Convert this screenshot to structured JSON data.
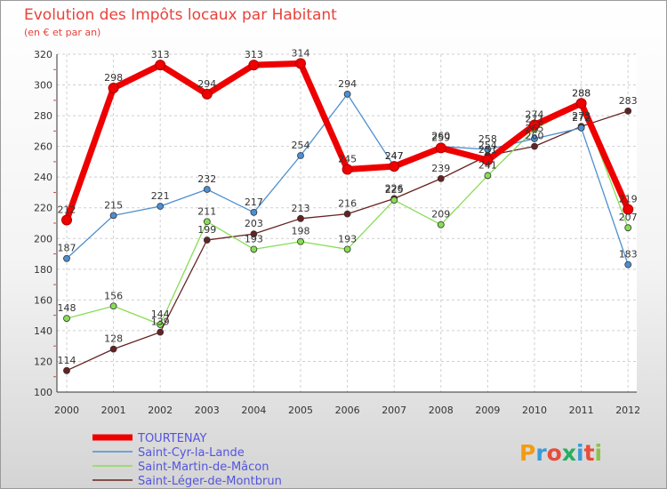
{
  "chart_data": {
    "type": "line",
    "title": "Evolution des Impôts locaux par Habitant",
    "subtitle": "(en € et par an)",
    "xlabel": "",
    "ylabel": "",
    "categories": [
      "2000",
      "2001",
      "2002",
      "2003",
      "2004",
      "2005",
      "2006",
      "2007",
      "2008",
      "2009",
      "2010",
      "2011",
      "2012"
    ],
    "ylim": [
      100,
      320
    ],
    "yticks": [
      100,
      120,
      140,
      160,
      180,
      200,
      220,
      240,
      260,
      280,
      300,
      320
    ],
    "grid": true,
    "series": [
      {
        "name": "TOURTENAY",
        "color": "#ee0000",
        "values": [
          212,
          298,
          313,
          294,
          313,
          314,
          245,
          247,
          259,
          251,
          274,
          288,
          219
        ]
      },
      {
        "name": "Saint-Cyr-la-Lande",
        "color": "#4d8fd0",
        "values": [
          187,
          215,
          221,
          232,
          217,
          254,
          294,
          247,
          260,
          258,
          265,
          272,
          183
        ]
      },
      {
        "name": "Saint-Martin-de-Mâcon",
        "color": "#88dd55",
        "values": [
          148,
          156,
          144,
          211,
          193,
          198,
          193,
          225,
          209,
          241,
          271,
          288,
          207
        ]
      },
      {
        "name": "Saint-Léger-de-Montbrun",
        "color": "#662222",
        "values": [
          114,
          128,
          139,
          199,
          203,
          213,
          216,
          226,
          239,
          254,
          260,
          273,
          283
        ]
      }
    ]
  },
  "logo": {
    "text": "Proxiti"
  }
}
